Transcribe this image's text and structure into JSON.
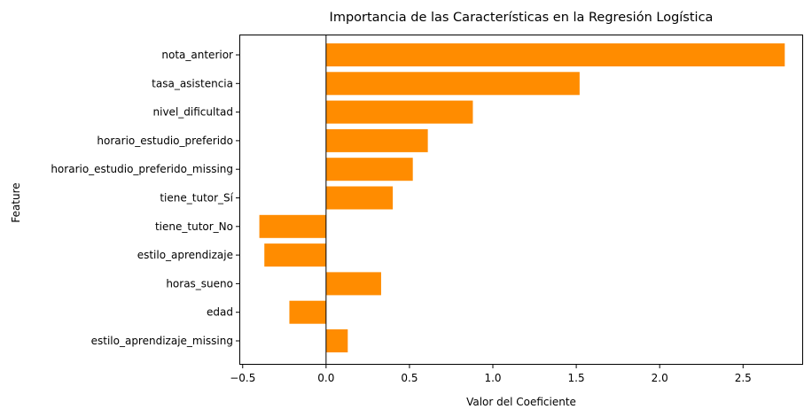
{
  "chart_data": {
    "type": "bar",
    "orientation": "horizontal",
    "title": "Importancia de las Características en la Regresión Logística",
    "xlabel": "Valor del Coeficiente",
    "ylabel": "Feature",
    "categories": [
      "nota_anterior",
      "tasa_asistencia",
      "nivel_dificultad",
      "horario_estudio_preferido",
      "horario_estudio_preferido_missing",
      "tiene_tutor_Sí",
      "tiene_tutor_No",
      "estilo_aprendizaje",
      "horas_sueno",
      "edad",
      "estilo_aprendizaje_missing"
    ],
    "values": [
      2.75,
      1.52,
      0.88,
      0.61,
      0.52,
      0.4,
      -0.4,
      -0.37,
      0.33,
      -0.22,
      0.13
    ],
    "xlim": [
      -0.52,
      2.86
    ],
    "xticks": [
      -0.5,
      0.0,
      0.5,
      1.0,
      1.5,
      2.0,
      2.5
    ],
    "xtick_labels": [
      "−0.5",
      "0.0",
      "0.5",
      "1.0",
      "1.5",
      "2.0",
      "2.5"
    ],
    "bar_color": "#ff8c00",
    "zero_line": true,
    "grid": false
  }
}
